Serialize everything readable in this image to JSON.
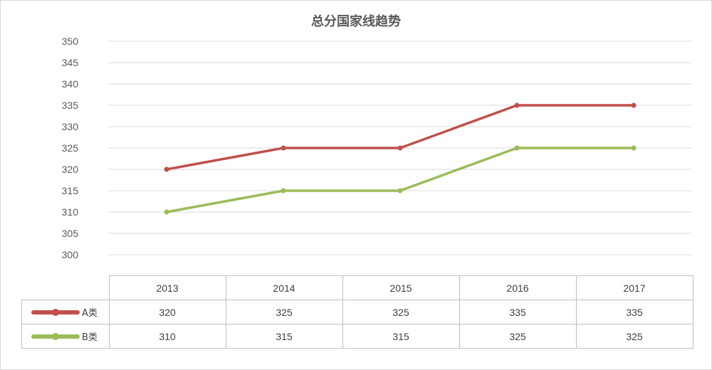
{
  "chart_data": {
    "type": "line",
    "title": "总分国家线趋势",
    "categories": [
      "2013",
      "2014",
      "2015",
      "2016",
      "2017"
    ],
    "y_ticks": [
      350,
      345,
      340,
      335,
      330,
      325,
      320,
      315,
      310,
      305,
      300
    ],
    "ylim": [
      300,
      350
    ],
    "grid": true,
    "legend": "data-table",
    "series": [
      {
        "name": "A类",
        "color": "#c0504d",
        "values": [
          320,
          325,
          325,
          335,
          335
        ]
      },
      {
        "name": "B类",
        "color": "#9bbb59",
        "values": [
          310,
          315,
          315,
          325,
          325
        ]
      }
    ]
  }
}
